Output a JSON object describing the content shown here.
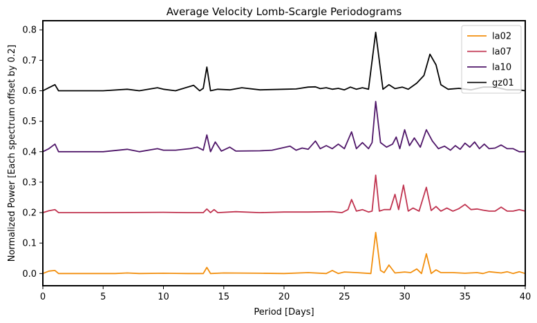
{
  "chart_data": {
    "type": "line",
    "title": "Average Velocity Lomb-Scargle Periodograms",
    "xlabel": "Period [Days]",
    "ylabel": "Normalized Power [Each spectrum offset by 0.2]",
    "xlim": [
      0,
      40
    ],
    "ylim": [
      -0.04,
      0.83
    ],
    "xticks": [
      0,
      5,
      10,
      15,
      20,
      25,
      30,
      35,
      40
    ],
    "xtick_labels": [
      "0",
      "5",
      "10",
      "15",
      "20",
      "25",
      "30",
      "35",
      "40"
    ],
    "yticks": [
      0.0,
      0.1,
      0.2,
      0.3,
      0.4,
      0.5,
      0.6,
      0.7,
      0.8
    ],
    "ytick_labels": [
      "0.0",
      "0.1",
      "0.2",
      "0.3",
      "0.4",
      "0.5",
      "0.6",
      "0.7",
      "0.8"
    ],
    "grid": false,
    "legend_position": "top-right",
    "series": [
      {
        "name": "la02",
        "color": "#f28e0c",
        "x": [
          0,
          0.5,
          1.0,
          1.3,
          2,
          4,
          6,
          7,
          8,
          10,
          12,
          13.3,
          13.6,
          13.9,
          15,
          18,
          20,
          22,
          23.5,
          24,
          24.5,
          25,
          26,
          27.2,
          27.6,
          28.0,
          28.3,
          28.7,
          29.2,
          30,
          30.5,
          31.0,
          31.4,
          31.8,
          32.2,
          32.6,
          33,
          34,
          35,
          36,
          36.5,
          37,
          38,
          38.5,
          39,
          39.5,
          40
        ],
        "values": [
          0.0,
          0.008,
          0.01,
          0.0,
          0.0,
          0.0,
          0.0,
          0.002,
          0.0,
          0.001,
          0.0,
          0.0,
          0.02,
          0.0,
          0.002,
          0.001,
          0.0,
          0.003,
          0.0,
          0.01,
          0.0,
          0.005,
          0.003,
          0.0,
          0.135,
          0.01,
          0.003,
          0.028,
          0.002,
          0.005,
          0.003,
          0.015,
          0.0,
          0.065,
          0.0,
          0.012,
          0.003,
          0.003,
          0.001,
          0.003,
          0.0,
          0.006,
          0.002,
          0.006,
          0.0,
          0.006,
          0.0
        ]
      },
      {
        "name": "la07",
        "color": "#c0334f",
        "x": [
          0,
          0.5,
          1.0,
          1.3,
          2,
          5,
          10,
          12,
          13.3,
          13.6,
          13.9,
          14.2,
          14.5,
          16,
          18,
          20,
          22,
          24,
          24.8,
          25.3,
          25.6,
          26.0,
          26.5,
          27.0,
          27.3,
          27.6,
          27.9,
          28.3,
          28.8,
          29.2,
          29.5,
          29.9,
          30.3,
          30.7,
          31.2,
          31.8,
          32.2,
          32.6,
          33.0,
          33.5,
          34,
          34.5,
          35.0,
          35.5,
          36,
          36.5,
          37,
          37.5,
          38,
          38.5,
          39,
          39.5,
          40
        ],
        "values": [
          0.2,
          0.206,
          0.21,
          0.2,
          0.2,
          0.2,
          0.201,
          0.2,
          0.2,
          0.212,
          0.2,
          0.21,
          0.2,
          0.203,
          0.2,
          0.202,
          0.202,
          0.203,
          0.2,
          0.21,
          0.243,
          0.205,
          0.21,
          0.202,
          0.205,
          0.323,
          0.205,
          0.21,
          0.21,
          0.26,
          0.21,
          0.29,
          0.205,
          0.215,
          0.205,
          0.283,
          0.207,
          0.22,
          0.205,
          0.215,
          0.205,
          0.213,
          0.227,
          0.21,
          0.212,
          0.208,
          0.205,
          0.205,
          0.218,
          0.205,
          0.205,
          0.21,
          0.205
        ]
      },
      {
        "name": "la10",
        "color": "#4e1568",
        "x": [
          0,
          0.5,
          1.0,
          1.3,
          2,
          5,
          7,
          8,
          9.5,
          10,
          11,
          12.2,
          12.8,
          13.3,
          13.6,
          13.9,
          14.3,
          14.8,
          15.5,
          16,
          18,
          19,
          20.5,
          21,
          21.5,
          22,
          22.6,
          23,
          23.5,
          24,
          24.5,
          25.0,
          25.6,
          26.0,
          26.5,
          27.0,
          27.3,
          27.6,
          28.0,
          28.5,
          29.0,
          29.3,
          29.6,
          30.0,
          30.4,
          30.8,
          31.3,
          31.8,
          32.3,
          32.8,
          33.3,
          33.8,
          34.2,
          34.6,
          35.0,
          35.4,
          35.8,
          36.2,
          36.6,
          37.0,
          37.5,
          38.0,
          38.5,
          39.0,
          39.5,
          40
        ],
        "values": [
          0.4,
          0.41,
          0.425,
          0.4,
          0.4,
          0.4,
          0.408,
          0.4,
          0.41,
          0.405,
          0.405,
          0.41,
          0.415,
          0.405,
          0.455,
          0.4,
          0.432,
          0.402,
          0.415,
          0.402,
          0.403,
          0.405,
          0.418,
          0.405,
          0.412,
          0.408,
          0.435,
          0.41,
          0.42,
          0.41,
          0.425,
          0.41,
          0.465,
          0.41,
          0.43,
          0.41,
          0.43,
          0.565,
          0.43,
          0.415,
          0.425,
          0.448,
          0.41,
          0.472,
          0.42,
          0.445,
          0.415,
          0.472,
          0.435,
          0.41,
          0.418,
          0.405,
          0.42,
          0.408,
          0.428,
          0.415,
          0.432,
          0.41,
          0.425,
          0.41,
          0.412,
          0.422,
          0.41,
          0.41,
          0.4,
          0.4
        ]
      },
      {
        "name": "gz01",
        "color": "#000000",
        "x": [
          0,
          0.5,
          1.0,
          1.3,
          2,
          5,
          7,
          8,
          9.5,
          10,
          11,
          12.5,
          13.0,
          13.3,
          13.6,
          13.9,
          14.5,
          15.5,
          16.5,
          18,
          20,
          21,
          22,
          22.6,
          23.0,
          23.5,
          24.0,
          24.5,
          25.0,
          25.5,
          26.0,
          26.5,
          27.0,
          27.6,
          28.2,
          28.7,
          29.2,
          29.8,
          30.3,
          31.0,
          31.6,
          32.1,
          32.6,
          33.0,
          33.6,
          34.5,
          35.5,
          36.5,
          37.5,
          38.5,
          39.5,
          40
        ],
        "values": [
          0.6,
          0.61,
          0.62,
          0.6,
          0.6,
          0.6,
          0.605,
          0.6,
          0.61,
          0.605,
          0.6,
          0.618,
          0.6,
          0.608,
          0.678,
          0.6,
          0.605,
          0.603,
          0.61,
          0.603,
          0.605,
          0.606,
          0.612,
          0.613,
          0.607,
          0.61,
          0.605,
          0.608,
          0.603,
          0.612,
          0.605,
          0.61,
          0.605,
          0.792,
          0.605,
          0.62,
          0.607,
          0.612,
          0.605,
          0.625,
          0.65,
          0.72,
          0.685,
          0.62,
          0.605,
          0.608,
          0.603,
          0.612,
          0.612,
          0.603,
          0.603,
          0.6
        ]
      }
    ]
  }
}
